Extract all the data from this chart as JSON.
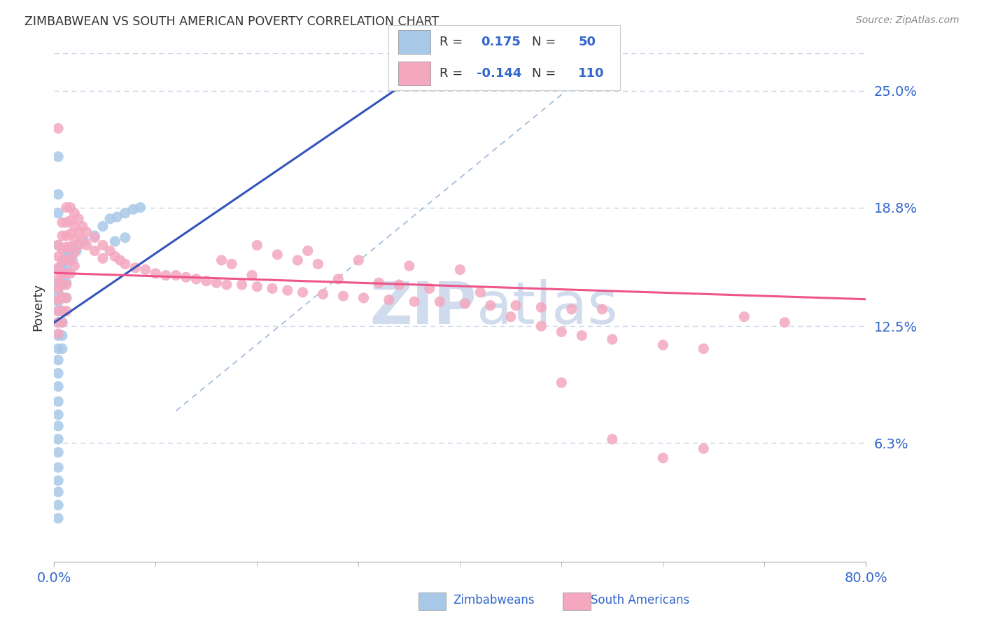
{
  "title": "ZIMBABWEAN VS SOUTH AMERICAN POVERTY CORRELATION CHART",
  "source": "Source: ZipAtlas.com",
  "ylabel": "Poverty",
  "ytick_labels": [
    "25.0%",
    "18.8%",
    "12.5%",
    "6.3%"
  ],
  "ytick_values": [
    0.25,
    0.188,
    0.125,
    0.063
  ],
  "xlim": [
    0.0,
    0.8
  ],
  "ylim": [
    0.0,
    0.27
  ],
  "xtick_left_label": "0.0%",
  "xtick_right_label": "80.0%",
  "legend_blue_label": "Zimbabweans",
  "legend_pink_label": "South Americans",
  "r_blue": 0.175,
  "n_blue": 50,
  "r_pink": -0.144,
  "n_pink": 110,
  "blue_dot_color": "#a8c8e8",
  "pink_dot_color": "#f4a8c0",
  "blue_line_color": "#3355bb",
  "pink_line_color": "#ee5588",
  "dashed_line_color": "#9fb8d8",
  "watermark_color": "#d0dcee",
  "title_color": "#333333",
  "source_color": "#888888",
  "axis_label_color": "#3366cc",
  "legend_r_color": "#333333",
  "legend_n_color": "#3366cc",
  "background_color": "#ffffff",
  "grid_color": "#c8d4e8",
  "blue_points": [
    [
      0.004,
      0.215
    ],
    [
      0.004,
      0.195
    ],
    [
      0.004,
      0.185
    ],
    [
      0.004,
      0.155
    ],
    [
      0.004,
      0.148
    ],
    [
      0.004,
      0.143
    ],
    [
      0.004,
      0.138
    ],
    [
      0.004,
      0.133
    ],
    [
      0.004,
      0.127
    ],
    [
      0.004,
      0.12
    ],
    [
      0.004,
      0.113
    ],
    [
      0.004,
      0.107
    ],
    [
      0.004,
      0.1
    ],
    [
      0.004,
      0.093
    ],
    [
      0.004,
      0.085
    ],
    [
      0.004,
      0.078
    ],
    [
      0.004,
      0.072
    ],
    [
      0.004,
      0.065
    ],
    [
      0.004,
      0.058
    ],
    [
      0.004,
      0.05
    ],
    [
      0.004,
      0.043
    ],
    [
      0.004,
      0.037
    ],
    [
      0.004,
      0.03
    ],
    [
      0.004,
      0.023
    ],
    [
      0.008,
      0.148
    ],
    [
      0.008,
      0.14
    ],
    [
      0.008,
      0.133
    ],
    [
      0.008,
      0.127
    ],
    [
      0.008,
      0.12
    ],
    [
      0.008,
      0.113
    ],
    [
      0.012,
      0.155
    ],
    [
      0.012,
      0.148
    ],
    [
      0.012,
      0.14
    ],
    [
      0.018,
      0.16
    ],
    [
      0.022,
      0.165
    ],
    [
      0.03,
      0.17
    ],
    [
      0.04,
      0.173
    ],
    [
      0.048,
      0.178
    ],
    [
      0.055,
      0.182
    ],
    [
      0.062,
      0.183
    ],
    [
      0.07,
      0.185
    ],
    [
      0.078,
      0.187
    ],
    [
      0.085,
      0.188
    ],
    [
      0.06,
      0.17
    ],
    [
      0.07,
      0.172
    ],
    [
      0.015,
      0.163
    ],
    [
      0.022,
      0.168
    ],
    [
      0.008,
      0.158
    ],
    [
      0.012,
      0.162
    ],
    [
      0.004,
      0.168
    ]
  ],
  "pink_points": [
    [
      0.004,
      0.23
    ],
    [
      0.004,
      0.168
    ],
    [
      0.004,
      0.162
    ],
    [
      0.004,
      0.156
    ],
    [
      0.004,
      0.15
    ],
    [
      0.004,
      0.145
    ],
    [
      0.004,
      0.139
    ],
    [
      0.004,
      0.133
    ],
    [
      0.004,
      0.127
    ],
    [
      0.004,
      0.121
    ],
    [
      0.008,
      0.18
    ],
    [
      0.008,
      0.173
    ],
    [
      0.008,
      0.166
    ],
    [
      0.008,
      0.16
    ],
    [
      0.008,
      0.153
    ],
    [
      0.008,
      0.147
    ],
    [
      0.008,
      0.14
    ],
    [
      0.008,
      0.133
    ],
    [
      0.008,
      0.127
    ],
    [
      0.012,
      0.188
    ],
    [
      0.012,
      0.18
    ],
    [
      0.012,
      0.173
    ],
    [
      0.012,
      0.167
    ],
    [
      0.012,
      0.16
    ],
    [
      0.012,
      0.153
    ],
    [
      0.012,
      0.147
    ],
    [
      0.012,
      0.14
    ],
    [
      0.012,
      0.133
    ],
    [
      0.016,
      0.188
    ],
    [
      0.016,
      0.181
    ],
    [
      0.016,
      0.174
    ],
    [
      0.016,
      0.167
    ],
    [
      0.016,
      0.16
    ],
    [
      0.016,
      0.153
    ],
    [
      0.02,
      0.185
    ],
    [
      0.02,
      0.178
    ],
    [
      0.02,
      0.171
    ],
    [
      0.02,
      0.164
    ],
    [
      0.02,
      0.157
    ],
    [
      0.024,
      0.182
    ],
    [
      0.024,
      0.175
    ],
    [
      0.024,
      0.168
    ],
    [
      0.028,
      0.178
    ],
    [
      0.028,
      0.171
    ],
    [
      0.032,
      0.175
    ],
    [
      0.032,
      0.168
    ],
    [
      0.04,
      0.172
    ],
    [
      0.04,
      0.165
    ],
    [
      0.048,
      0.168
    ],
    [
      0.048,
      0.161
    ],
    [
      0.055,
      0.165
    ],
    [
      0.06,
      0.162
    ],
    [
      0.065,
      0.16
    ],
    [
      0.07,
      0.158
    ],
    [
      0.08,
      0.156
    ],
    [
      0.09,
      0.155
    ],
    [
      0.1,
      0.153
    ],
    [
      0.11,
      0.152
    ],
    [
      0.12,
      0.152
    ],
    [
      0.13,
      0.151
    ],
    [
      0.14,
      0.15
    ],
    [
      0.15,
      0.149
    ],
    [
      0.16,
      0.148
    ],
    [
      0.17,
      0.147
    ],
    [
      0.185,
      0.147
    ],
    [
      0.2,
      0.146
    ],
    [
      0.215,
      0.145
    ],
    [
      0.23,
      0.144
    ],
    [
      0.245,
      0.143
    ],
    [
      0.265,
      0.142
    ],
    [
      0.285,
      0.141
    ],
    [
      0.305,
      0.14
    ],
    [
      0.33,
      0.139
    ],
    [
      0.355,
      0.138
    ],
    [
      0.38,
      0.138
    ],
    [
      0.405,
      0.137
    ],
    [
      0.43,
      0.136
    ],
    [
      0.455,
      0.136
    ],
    [
      0.48,
      0.135
    ],
    [
      0.51,
      0.134
    ],
    [
      0.54,
      0.134
    ],
    [
      0.2,
      0.168
    ],
    [
      0.25,
      0.165
    ],
    [
      0.3,
      0.16
    ],
    [
      0.35,
      0.157
    ],
    [
      0.4,
      0.155
    ],
    [
      0.165,
      0.16
    ],
    [
      0.175,
      0.158
    ],
    [
      0.195,
      0.152
    ],
    [
      0.22,
      0.163
    ],
    [
      0.24,
      0.16
    ],
    [
      0.26,
      0.158
    ],
    [
      0.28,
      0.15
    ],
    [
      0.32,
      0.148
    ],
    [
      0.34,
      0.147
    ],
    [
      0.37,
      0.145
    ],
    [
      0.42,
      0.143
    ],
    [
      0.45,
      0.13
    ],
    [
      0.48,
      0.125
    ],
    [
      0.5,
      0.122
    ],
    [
      0.52,
      0.12
    ],
    [
      0.55,
      0.118
    ],
    [
      0.6,
      0.115
    ],
    [
      0.64,
      0.113
    ],
    [
      0.68,
      0.13
    ],
    [
      0.72,
      0.127
    ],
    [
      0.5,
      0.095
    ],
    [
      0.55,
      0.065
    ],
    [
      0.6,
      0.055
    ],
    [
      0.64,
      0.06
    ]
  ]
}
